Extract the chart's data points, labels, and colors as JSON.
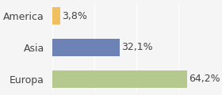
{
  "categories": [
    "America",
    "Asia",
    "Europa"
  ],
  "values": [
    3.8,
    32.1,
    64.2
  ],
  "labels": [
    "3,8%",
    "32,1%",
    "64,2%"
  ],
  "colors": [
    "#f0c060",
    "#6d83b5",
    "#b5c98e"
  ],
  "xlim": [
    0,
    75
  ],
  "background_color": "#f5f5f5",
  "bar_height": 0.55,
  "label_fontsize": 9,
  "tick_fontsize": 9
}
